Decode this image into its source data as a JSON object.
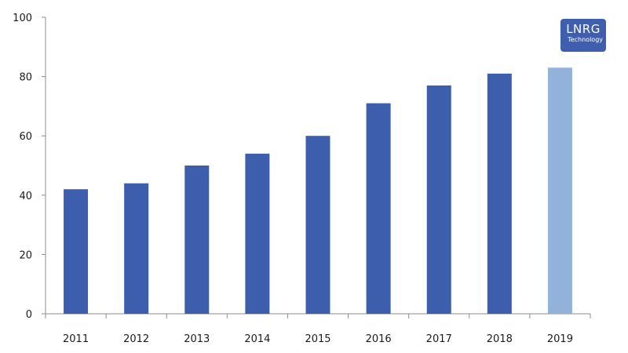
{
  "chart_data": {
    "type": "bar",
    "title": "",
    "xlabel": "",
    "ylabel": "",
    "categories": [
      "2011",
      "2012",
      "2013",
      "2014",
      "2015",
      "2016",
      "2017",
      "2018",
      "2019"
    ],
    "values": [
      42,
      44,
      50,
      54,
      60,
      71,
      77,
      81,
      83
    ],
    "bar_colors": [
      "#3d5ead",
      "#3d5ead",
      "#3d5ead",
      "#3d5ead",
      "#3d5ead",
      "#3d5ead",
      "#3d5ead",
      "#3d5ead",
      "#93b2da"
    ],
    "ylim": [
      0,
      100
    ],
    "yticks": [
      0,
      20,
      40,
      60,
      80,
      100
    ],
    "ytick_labels": [
      "0",
      "20",
      "40",
      "60",
      "80",
      "100"
    ],
    "grid": false,
    "legend": "none"
  },
  "logo": {
    "main": "LNRG",
    "sub": "Technology"
  }
}
